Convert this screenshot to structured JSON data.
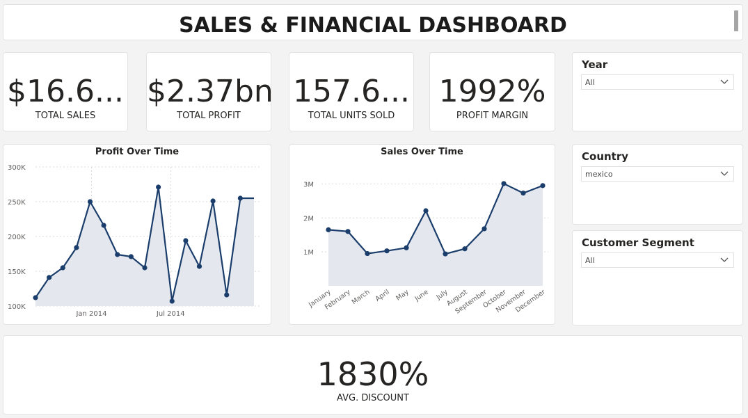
{
  "header": {
    "title": "SALES & FINANCIAL DASHBOARD"
  },
  "kpis": [
    {
      "value": "$16.6...",
      "label": "TOTAL SALES"
    },
    {
      "value": "$2.37bn",
      "label": "TOTAL PROFIT"
    },
    {
      "value": "157.6...",
      "label": "TOTAL UNITS SOLD"
    },
    {
      "value": "1992%",
      "label": "PROFIT MARGIN"
    }
  ],
  "slicers": {
    "year": {
      "title": "Year",
      "value": "All"
    },
    "country": {
      "title": "Country",
      "value": "mexico"
    },
    "segment": {
      "title": "Customer Segment",
      "value": "All"
    }
  },
  "avg_discount": {
    "value": "1830%",
    "label": "AVG. DISCOUNT"
  },
  "colors": {
    "line": "#1a3d6b",
    "area": "#e4e8ee",
    "grid": "#d9d9d9"
  },
  "chart_data": [
    {
      "type": "area",
      "title": "Profit Over Time",
      "x": [
        0,
        1,
        2,
        3,
        4,
        5,
        6,
        7,
        8,
        9,
        10,
        11,
        12,
        13,
        14,
        15,
        16
      ],
      "values": [
        112000,
        141000,
        155000,
        184000,
        250000,
        216000,
        174000,
        171000,
        155000,
        271000,
        107000,
        194000,
        157000,
        251000,
        116000,
        255000,
        255000
      ],
      "ylim": [
        100000,
        300000
      ],
      "yticks": [
        "100K",
        "150K",
        "200K",
        "250K",
        "300K"
      ],
      "xtick_labels": [
        "Jan 2014",
        "Jul 2014"
      ],
      "xtick_positions": [
        4.1,
        9.9
      ],
      "grid": true
    },
    {
      "type": "area",
      "title": "Sales Over Time",
      "categories": [
        "January",
        "February",
        "March",
        "April",
        "May",
        "June",
        "July",
        "August",
        "September",
        "October",
        "November",
        "December"
      ],
      "values": [
        1650000,
        1600000,
        950000,
        1030000,
        1120000,
        2210000,
        940000,
        1090000,
        1680000,
        3010000,
        2730000,
        2950000
      ],
      "ylim": [
        0,
        3500000
      ],
      "yticks": [
        "1M",
        "2M",
        "3M"
      ],
      "grid": true
    }
  ]
}
